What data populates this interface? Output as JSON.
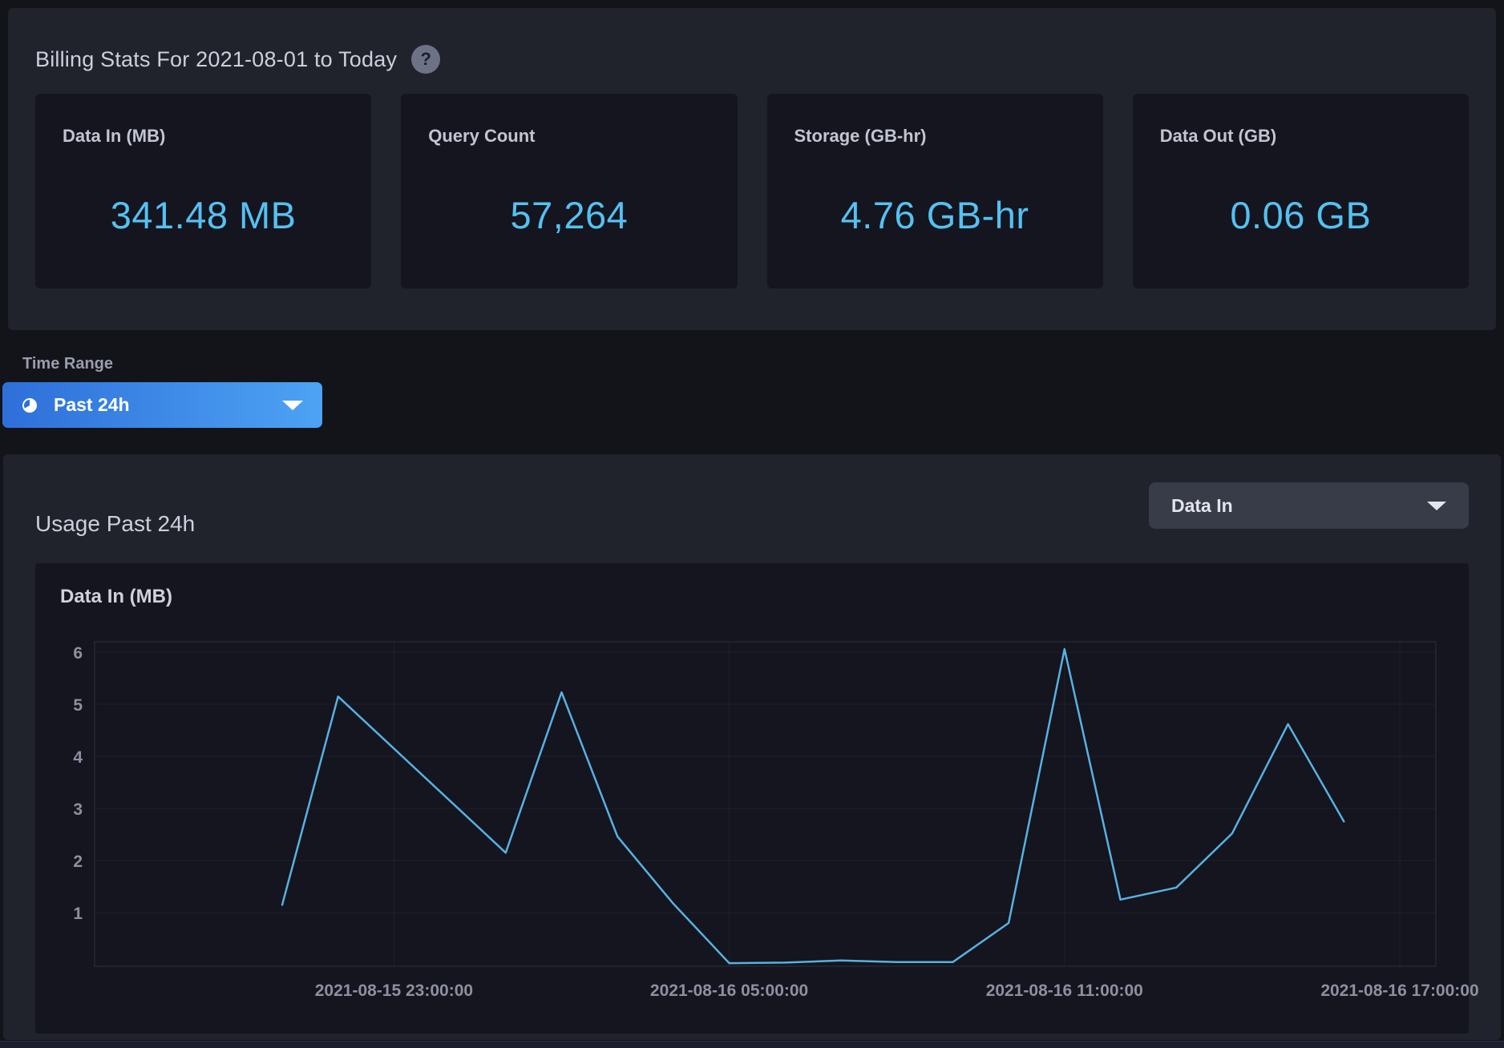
{
  "billing": {
    "title": "Billing Stats For 2021-08-01 to Today",
    "help_glyph": "?",
    "cards": [
      {
        "label": "Data In (MB)",
        "value": "341.48 MB"
      },
      {
        "label": "Query Count",
        "value": "57,264"
      },
      {
        "label": "Storage (GB-hr)",
        "value": "4.76 GB-hr"
      },
      {
        "label": "Data Out (GB)",
        "value": "0.06 GB"
      }
    ]
  },
  "time_range": {
    "label": "Time Range",
    "selected": "Past 24h"
  },
  "usage": {
    "title": "Usage Past 24h",
    "metric_dropdown": "Data In",
    "chart_title": "Data In (MB)"
  },
  "colors": {
    "accent_blue": "#54c1f2",
    "button_gradient_start": "#2e6fd9",
    "button_gradient_end": "#4da3f4",
    "line_color": "#57b1e3",
    "grid_color": "rgba(255,255,255,0.05)",
    "plot_border": "#2e3039",
    "tick_text": "#8d90a0"
  },
  "chart_data": {
    "type": "line",
    "title": "Data In (MB)",
    "x": [
      "2021-08-15 21:00:00",
      "2021-08-15 22:00:00",
      "2021-08-15 23:00:00",
      "2021-08-16 00:00:00",
      "2021-08-16 01:00:00",
      "2021-08-16 02:00:00",
      "2021-08-16 03:00:00",
      "2021-08-16 04:00:00",
      "2021-08-16 05:00:00",
      "2021-08-16 06:00:00",
      "2021-08-16 07:00:00",
      "2021-08-16 08:00:00",
      "2021-08-16 09:00:00",
      "2021-08-16 10:00:00",
      "2021-08-16 11:00:00",
      "2021-08-16 12:00:00",
      "2021-08-16 13:00:00",
      "2021-08-16 14:00:00",
      "2021-08-16 15:00:00",
      "2021-08-16 16:00:00"
    ],
    "values": [
      1.15,
      5.15,
      4.15,
      3.15,
      2.15,
      5.23,
      2.46,
      1.17,
      0.03,
      0.04,
      0.08,
      0.05,
      0.05,
      0.8,
      6.06,
      1.25,
      1.48,
      2.52,
      4.62,
      2.75
    ],
    "x_tick_labels": [
      "2021-08-15 23:00:00",
      "2021-08-16 05:00:00",
      "2021-08-16 11:00:00",
      "2021-08-16 17:00:00"
    ],
    "x_tick_indices": [
      2,
      8,
      14,
      20
    ],
    "y_ticks": [
      1,
      2,
      3,
      4,
      5,
      6
    ],
    "ylim": [
      0,
      6.2
    ],
    "xlabel": "",
    "ylabel": "Data In (MB)",
    "legend": "none",
    "grid": true
  }
}
